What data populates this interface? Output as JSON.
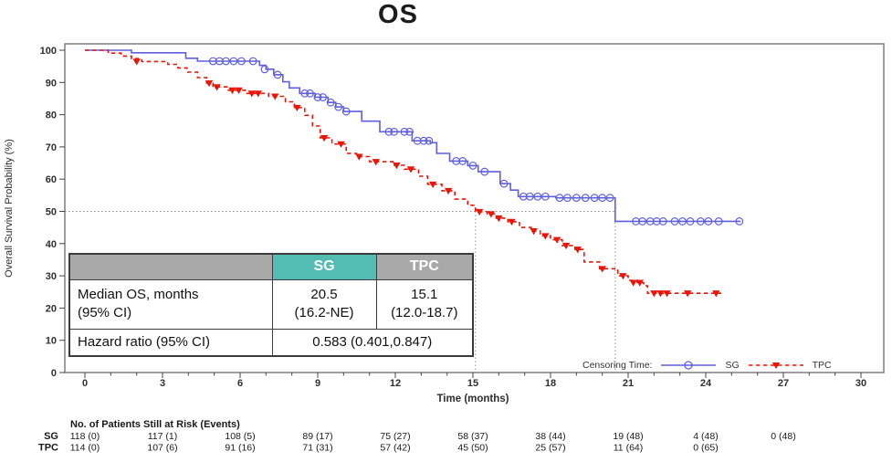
{
  "title": "OS",
  "colors": {
    "sg": "#5f5fdf",
    "tpc": "#e81508",
    "teal_header": "#53bdb3",
    "gray_header": "#a9a9a9",
    "frame": "#7f7f7f",
    "ref_line": "#8f8f8f",
    "tick_text": "#2e2e2e"
  },
  "legend": {
    "prefix": "Censoring Time:",
    "sg": "SG",
    "tpc": "TPC"
  },
  "inset_table": {
    "corner": "",
    "col_sg": "SG",
    "col_tpc": "TPC",
    "rows": [
      {
        "label": "Median OS, months\n(95% CI)",
        "sg": "20.5\n(16.2-NE)",
        "tpc": "15.1\n(12.0-18.7)"
      },
      {
        "label": "Hazard ratio (95% CI)",
        "value": "0.583 (0.401,0.847)"
      }
    ]
  },
  "risk_table": {
    "title": "No. of Patients Still at Risk (Events)",
    "rows": [
      {
        "label": "SG",
        "values": [
          "118 (0)",
          "117 (1)",
          "108 (5)",
          "89 (17)",
          "75 (27)",
          "58 (37)",
          "38 (44)",
          "19 (48)",
          "4 (48)",
          "0 (48)"
        ]
      },
      {
        "label": "TPC",
        "values": [
          "114 (0)",
          "107 (6)",
          "91 (16)",
          "71 (31)",
          "57 (42)",
          "45 (50)",
          "25 (57)",
          "11 (64)",
          "0 (65)"
        ]
      }
    ]
  },
  "chart_data": {
    "type": "line",
    "subtype": "kaplan-meier-step",
    "title": "OS",
    "xlabel": "Time (months)",
    "ylabel": "Overall Survival Probability (%)",
    "xlim": [
      0,
      30
    ],
    "ylim": [
      0,
      100
    ],
    "x_ticks": [
      0,
      3,
      6,
      9,
      12,
      15,
      18,
      21,
      24,
      27,
      30
    ],
    "x_minor_step": 1,
    "y_ticks": [
      0,
      10,
      20,
      30,
      40,
      50,
      60,
      70,
      80,
      90,
      100
    ],
    "grid": false,
    "legend_position": "bottom-right-inside",
    "reference_lines": {
      "horizontal_y": 50,
      "vertical_x": [
        15.1,
        20.5
      ]
    },
    "medians": {
      "SG": "20.5 (16.2-NE)",
      "TPC": "15.1 (12.0-18.7)",
      "hazard_ratio": "0.583 (0.401,0.847)"
    },
    "series": [
      {
        "name": "SG",
        "color": "#5f5fdf",
        "line_style": "solid",
        "marker": "open-circle",
        "steps": [
          [
            0,
            100
          ],
          [
            1.8,
            99.2
          ],
          [
            3.9,
            97.5
          ],
          [
            4.35,
            96.6
          ],
          [
            6.75,
            95.3
          ],
          [
            7.0,
            94.1
          ],
          [
            7.3,
            92.4
          ],
          [
            7.65,
            90.2
          ],
          [
            7.9,
            88.3
          ],
          [
            8.3,
            86.6
          ],
          [
            8.9,
            85.4
          ],
          [
            9.4,
            83.8
          ],
          [
            9.7,
            82.4
          ],
          [
            10.0,
            81.0
          ],
          [
            10.7,
            78.0
          ],
          [
            11.4,
            74.7
          ],
          [
            12.65,
            71.9
          ],
          [
            13.35,
            71.3
          ],
          [
            13.6,
            68.0
          ],
          [
            14.1,
            65.6
          ],
          [
            14.8,
            64.2
          ],
          [
            15.2,
            62.3
          ],
          [
            16.05,
            58.6
          ],
          [
            16.45,
            56.6
          ],
          [
            16.75,
            54.6
          ],
          [
            18.2,
            54.2
          ],
          [
            20.5,
            46.9
          ],
          [
            25.35,
            46.9
          ]
        ],
        "censor_marks": [
          [
            4.95,
            96.6
          ],
          [
            5.2,
            96.6
          ],
          [
            5.45,
            96.6
          ],
          [
            5.75,
            96.6
          ],
          [
            6.05,
            96.6
          ],
          [
            6.5,
            96.6
          ],
          [
            6.95,
            94.1
          ],
          [
            7.45,
            92.4
          ],
          [
            8.5,
            86.6
          ],
          [
            8.7,
            86.6
          ],
          [
            9.0,
            85.4
          ],
          [
            9.2,
            85.4
          ],
          [
            9.5,
            83.8
          ],
          [
            9.8,
            82.4
          ],
          [
            10.1,
            81.0
          ],
          [
            11.75,
            74.7
          ],
          [
            11.95,
            74.7
          ],
          [
            12.35,
            74.7
          ],
          [
            12.55,
            74.7
          ],
          [
            12.85,
            71.9
          ],
          [
            13.1,
            71.9
          ],
          [
            13.3,
            71.9
          ],
          [
            14.35,
            65.6
          ],
          [
            14.6,
            65.6
          ],
          [
            15.0,
            64.2
          ],
          [
            15.45,
            62.3
          ],
          [
            16.2,
            58.6
          ],
          [
            16.95,
            54.6
          ],
          [
            17.2,
            54.6
          ],
          [
            17.5,
            54.6
          ],
          [
            17.8,
            54.6
          ],
          [
            18.35,
            54.2
          ],
          [
            18.65,
            54.2
          ],
          [
            19.0,
            54.2
          ],
          [
            19.35,
            54.2
          ],
          [
            19.7,
            54.2
          ],
          [
            20.0,
            54.2
          ],
          [
            20.3,
            54.2
          ],
          [
            21.3,
            46.9
          ],
          [
            21.55,
            46.9
          ],
          [
            21.85,
            46.9
          ],
          [
            22.1,
            46.9
          ],
          [
            22.35,
            46.9
          ],
          [
            22.8,
            46.9
          ],
          [
            23.1,
            46.9
          ],
          [
            23.4,
            46.9
          ],
          [
            23.8,
            46.9
          ],
          [
            24.1,
            46.9
          ],
          [
            24.5,
            46.9
          ],
          [
            25.3,
            46.9
          ]
        ]
      },
      {
        "name": "TPC",
        "color": "#e81508",
        "line_style": "dashed",
        "marker": "filled-triangle-down",
        "steps": [
          [
            0,
            100
          ],
          [
            0.9,
            99.1
          ],
          [
            1.4,
            98.2
          ],
          [
            1.8,
            97.4
          ],
          [
            2.2,
            96.5
          ],
          [
            3.2,
            95.6
          ],
          [
            3.6,
            94.5
          ],
          [
            3.95,
            93.2
          ],
          [
            4.35,
            91.5
          ],
          [
            4.7,
            89.8
          ],
          [
            4.95,
            88.6
          ],
          [
            5.55,
            87.6
          ],
          [
            6.2,
            86.6
          ],
          [
            7.1,
            85.7
          ],
          [
            7.75,
            84.0
          ],
          [
            8.1,
            82.2
          ],
          [
            8.5,
            79.8
          ],
          [
            8.8,
            76.5
          ],
          [
            9.1,
            72.8
          ],
          [
            9.55,
            70.9
          ],
          [
            10.1,
            68.0
          ],
          [
            10.5,
            67.0
          ],
          [
            11.0,
            65.4
          ],
          [
            11.9,
            64.3
          ],
          [
            12.35,
            63.1
          ],
          [
            12.9,
            60.9
          ],
          [
            13.25,
            58.4
          ],
          [
            13.8,
            56.4
          ],
          [
            14.3,
            53.8
          ],
          [
            14.8,
            51.9
          ],
          [
            15.1,
            49.9
          ],
          [
            15.55,
            49.2
          ],
          [
            15.9,
            47.9
          ],
          [
            16.35,
            46.8
          ],
          [
            16.8,
            45.0
          ],
          [
            17.25,
            43.9
          ],
          [
            17.6,
            42.4
          ],
          [
            18.0,
            41.2
          ],
          [
            18.45,
            39.4
          ],
          [
            18.95,
            38.2
          ],
          [
            19.3,
            34.3
          ],
          [
            19.9,
            32.2
          ],
          [
            20.6,
            30.0
          ],
          [
            21.0,
            28.6
          ],
          [
            21.35,
            27.9
          ],
          [
            21.6,
            26.9
          ],
          [
            21.75,
            24.6
          ],
          [
            24.6,
            24.6
          ]
        ],
        "censor_marks": [
          [
            2.0,
            96.5
          ],
          [
            4.8,
            89.8
          ],
          [
            5.1,
            88.6
          ],
          [
            5.7,
            87.6
          ],
          [
            5.95,
            87.6
          ],
          [
            6.45,
            86.6
          ],
          [
            6.7,
            86.6
          ],
          [
            7.35,
            85.7
          ],
          [
            8.2,
            82.2
          ],
          [
            9.25,
            72.8
          ],
          [
            9.9,
            70.9
          ],
          [
            10.6,
            67.0
          ],
          [
            11.25,
            65.4
          ],
          [
            12.05,
            64.3
          ],
          [
            12.6,
            63.1
          ],
          [
            13.45,
            58.4
          ],
          [
            14.05,
            56.4
          ],
          [
            15.25,
            49.9
          ],
          [
            15.7,
            49.2
          ],
          [
            16.0,
            47.9
          ],
          [
            16.5,
            46.8
          ],
          [
            17.35,
            43.9
          ],
          [
            17.8,
            42.4
          ],
          [
            18.25,
            41.2
          ],
          [
            18.6,
            39.4
          ],
          [
            19.05,
            38.2
          ],
          [
            20.0,
            32.2
          ],
          [
            20.8,
            30.0
          ],
          [
            21.2,
            27.9
          ],
          [
            21.45,
            27.9
          ],
          [
            22.0,
            24.6
          ],
          [
            22.25,
            24.6
          ],
          [
            22.5,
            24.6
          ],
          [
            23.3,
            24.6
          ],
          [
            24.4,
            24.6
          ]
        ]
      }
    ]
  }
}
